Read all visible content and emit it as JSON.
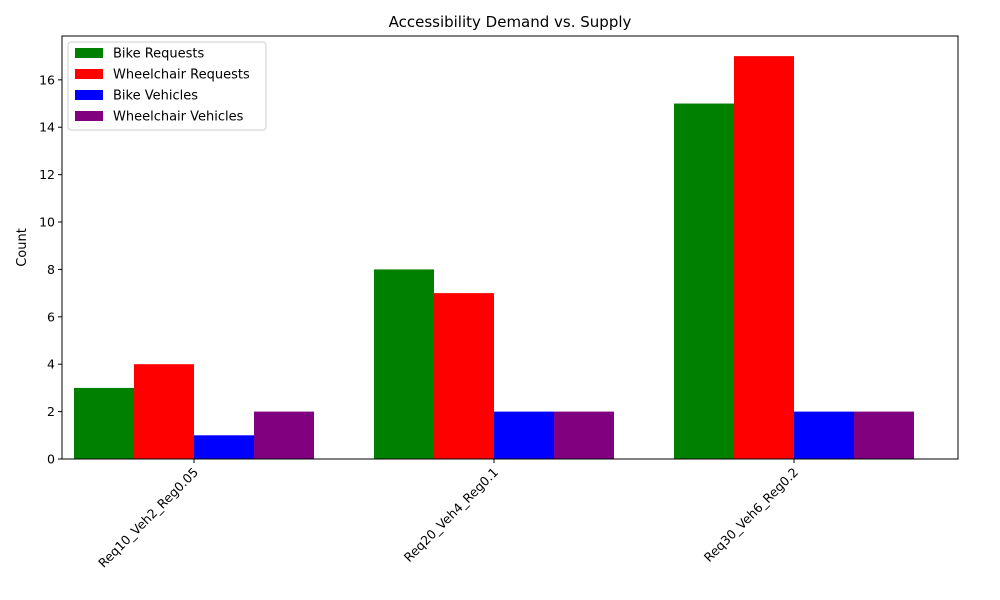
{
  "chart_data": {
    "type": "bar",
    "title": "Accessibility Demand vs. Supply",
    "xlabel": "",
    "ylabel": "Count",
    "categories": [
      "Req10_Veh2_Reg0.05",
      "Req20_Veh4_Reg0.1",
      "Req30_Veh6_Reg0.2"
    ],
    "series": [
      {
        "name": "Bike Requests",
        "color": "#008000",
        "values": [
          3,
          8,
          15
        ]
      },
      {
        "name": "Wheelchair Requests",
        "color": "#ff0000",
        "values": [
          4,
          7,
          17
        ]
      },
      {
        "name": "Bike Vehicles",
        "color": "#0000ff",
        "values": [
          1,
          2,
          2
        ]
      },
      {
        "name": "Wheelchair Vehicles",
        "color": "#800080",
        "values": [
          2,
          2,
          2
        ]
      }
    ],
    "ylim": [
      0,
      17.85
    ],
    "yticks": [
      0,
      2,
      4,
      6,
      8,
      10,
      12,
      14,
      16
    ],
    "xtick_rotation": 45,
    "grid": false,
    "legend_position": "top-left"
  }
}
